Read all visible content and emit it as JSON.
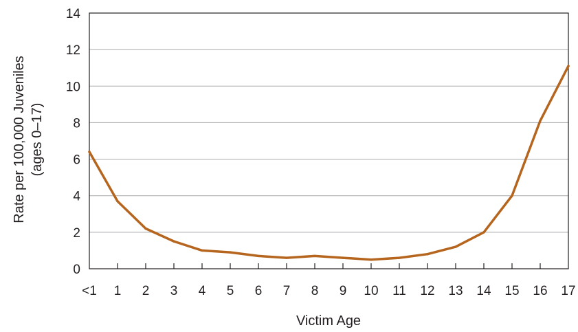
{
  "chart_data": {
    "type": "line",
    "xlabel": "Victim Age",
    "ylabel": "Rate per 100,000 Juveniles",
    "ylabel_line2": "(ages 0–17)",
    "categories": [
      "<1",
      "1",
      "2",
      "3",
      "4",
      "5",
      "6",
      "7",
      "8",
      "9",
      "10",
      "11",
      "12",
      "13",
      "14",
      "15",
      "16",
      "17"
    ],
    "series": [
      {
        "values": [
          6.4,
          3.7,
          2.2,
          1.5,
          1.0,
          0.9,
          0.7,
          0.6,
          0.7,
          0.6,
          0.5,
          0.6,
          0.8,
          1.2,
          2.0,
          4.0,
          8.1,
          11.1
        ]
      }
    ],
    "ylim": [
      0,
      14
    ],
    "yticks": [
      "0",
      "2",
      "4",
      "6",
      "8",
      "10",
      "12",
      "14"
    ],
    "grid": true,
    "line_color": "#b5651d",
    "axis_color": "#231f20",
    "grid_color": "#a7a9ac"
  }
}
